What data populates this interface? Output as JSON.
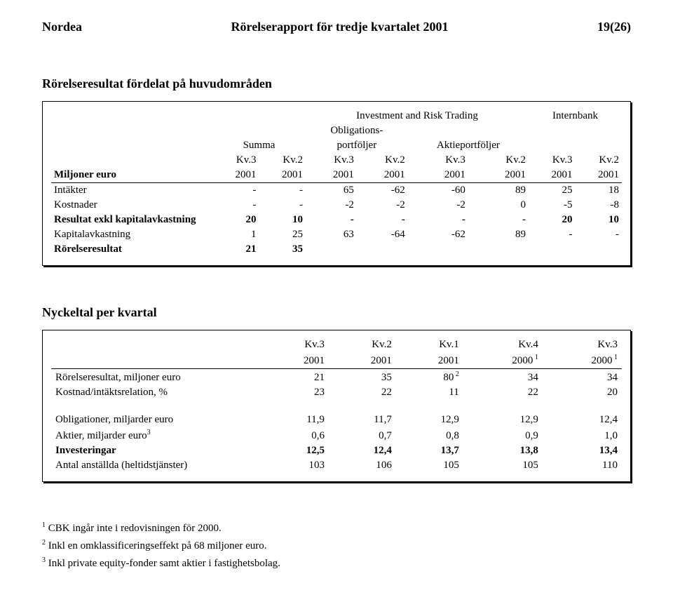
{
  "header": {
    "left": "Nordea",
    "center": "Rörelserapport för tredje kvartalet 2001",
    "right": "19(26)"
  },
  "section1": {
    "title": "Rörelseresultat fördelat på huvudområden",
    "top_group1": "Investment and Risk Trading",
    "top_group2": "Internbank",
    "sub_summa": "Summa",
    "sub_oblig1": "Obligations-",
    "sub_oblig2": "portföljer",
    "sub_aktie": "Aktieportföljer",
    "col_kv3": "Kv.3",
    "col_kv2": "Kv.2",
    "col_year": "2001",
    "row_label": "Miljoner euro",
    "rows": [
      {
        "label": "Intäkter",
        "bold": false,
        "v": [
          "-",
          "-",
          "65",
          "-62",
          "-60",
          "89",
          "25",
          "18"
        ]
      },
      {
        "label": "Kostnader",
        "bold": false,
        "v": [
          "-",
          "-",
          "-2",
          "-2",
          "-2",
          "0",
          "-5",
          "-8"
        ]
      },
      {
        "label": "Resultat exkl kapitalavkastning",
        "bold": true,
        "v": [
          "20",
          "10",
          "-",
          "-",
          "-",
          "-",
          "20",
          "10"
        ]
      },
      {
        "label": "Kapitalavkastning",
        "bold": false,
        "v": [
          "1",
          "25",
          "63",
          "-64",
          "-62",
          "89",
          "-",
          "-"
        ]
      },
      {
        "label": "Rörelseresultat",
        "bold": true,
        "v": [
          "21",
          "35",
          "",
          "",
          "",
          "",
          "",
          ""
        ]
      }
    ]
  },
  "section2": {
    "title": "Nyckeltal per kvartal",
    "cols_top": [
      "Kv.3",
      "Kv.2",
      "Kv.1",
      "Kv.4",
      "Kv.3"
    ],
    "cols_year": [
      "2001",
      "2001",
      "2001",
      "2000",
      "2000"
    ],
    "year_sup": [
      "",
      "",
      "",
      "1",
      "1"
    ],
    "rows_a": [
      {
        "label": "Rörelseresultat, miljoner euro",
        "v": [
          "21",
          "35",
          "80",
          "34",
          "34"
        ],
        "sup": [
          "",
          "",
          "2",
          "",
          ""
        ]
      },
      {
        "label": "Kostnad/intäktsrelation, %",
        "v": [
          "23",
          "22",
          "11",
          "22",
          "20"
        ],
        "sup": [
          "",
          "",
          "",
          "",
          ""
        ]
      }
    ],
    "rows_b": [
      {
        "label": "Obligationer, miljarder euro",
        "label_sup": "",
        "bold": false,
        "v": [
          "11,9",
          "11,7",
          "12,9",
          "12,9",
          "12,4"
        ]
      },
      {
        "label": "Aktier, miljarder euro",
        "label_sup": "3",
        "bold": false,
        "v": [
          "0,6",
          "0,7",
          "0,8",
          "0,9",
          "1,0"
        ]
      },
      {
        "label": "Investeringar",
        "label_sup": "",
        "bold": true,
        "v": [
          "12,5",
          "12,4",
          "13,7",
          "13,8",
          "13,4"
        ]
      },
      {
        "label": "Antal anställda (heltidstjänster)",
        "label_sup": "",
        "bold": false,
        "v": [
          "103",
          "106",
          "105",
          "105",
          "110"
        ]
      }
    ]
  },
  "footnotes": {
    "f1_sup": "1",
    "f1": "CBK ingår inte i redovisningen för 2000.",
    "f2_sup": "2",
    "f2": " Inkl en omklassificeringseffekt på 68 miljoner euro.",
    "f3_sup": "3",
    "f3": " Inkl private equity-fonder samt aktier i fastighetsbolag."
  }
}
